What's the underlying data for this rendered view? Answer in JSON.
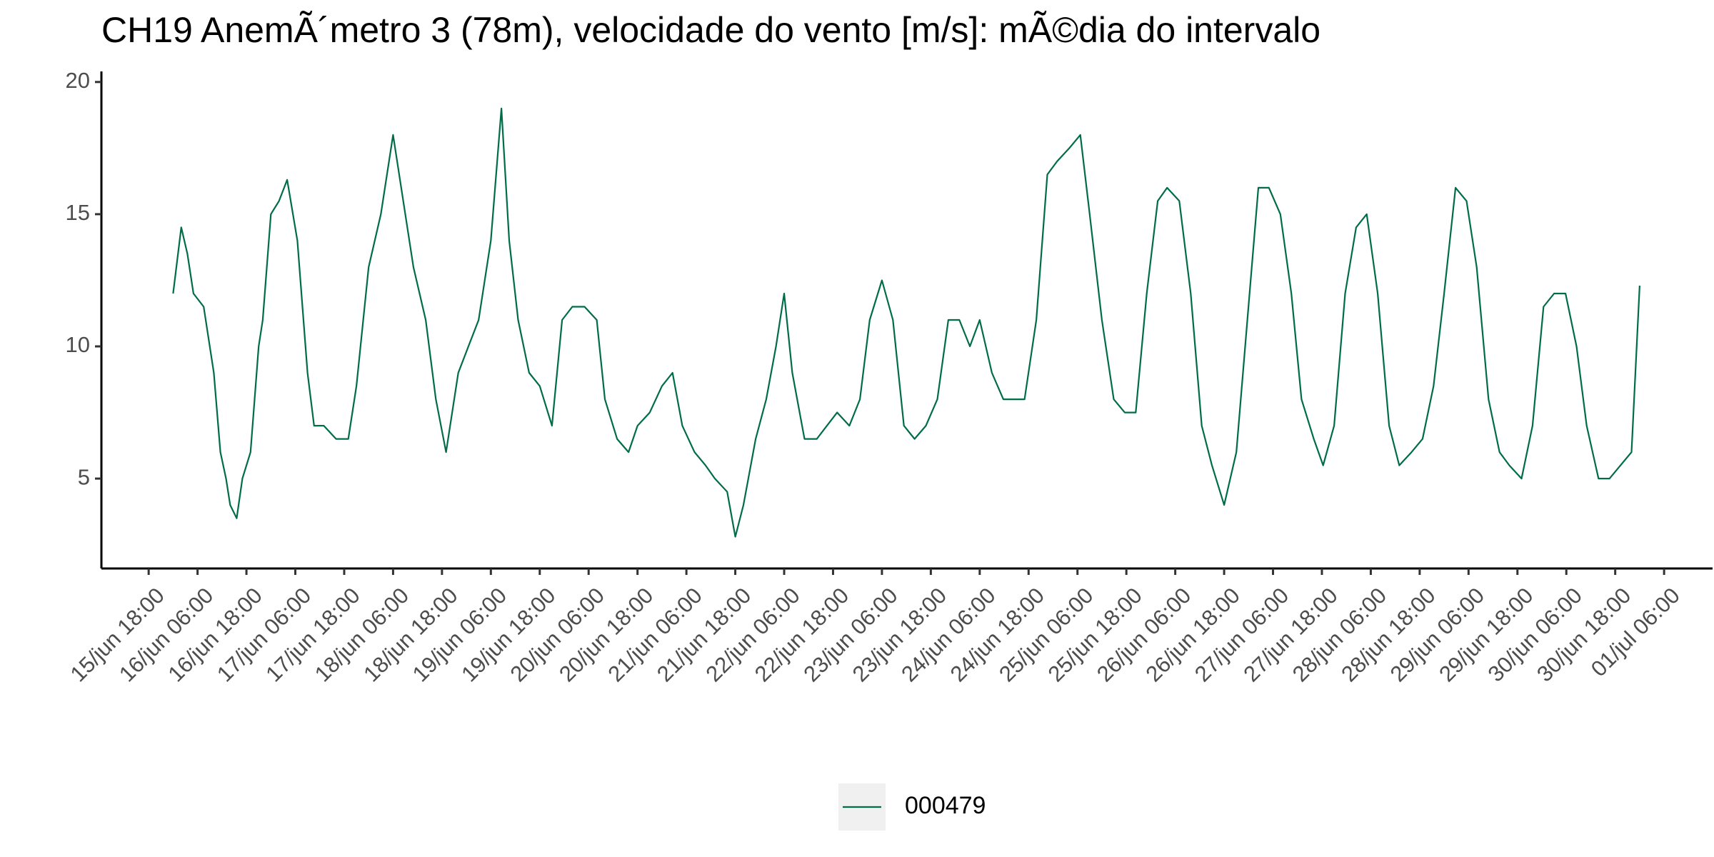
{
  "chart_data": {
    "type": "line",
    "title": "CH19 AnemÃ´metro 3 (78m), velocidade do vento [m/s]: mÃ©dia do intervalo",
    "x": [
      6,
      8,
      9.5,
      11,
      13.5,
      16,
      17.6,
      19,
      20,
      21.6,
      23,
      25,
      27,
      28,
      30,
      32,
      34,
      36.5,
      39,
      40.6,
      43,
      46,
      49,
      51,
      54,
      57,
      60,
      62,
      65,
      68,
      70.5,
      73,
      76,
      78.5,
      81,
      84,
      86.6,
      88.5,
      90.7,
      93.4,
      96,
      99,
      101.5,
      104,
      107,
      110,
      112,
      115,
      117.8,
      120,
      123,
      126,
      128.6,
      131,
      134,
      136.7,
      139,
      142,
      144,
      146,
      149,
      151.6,
      154,
      156,
      158,
      161,
      164,
      166.5,
      169,
      172,
      174.6,
      177,
      180,
      182.7,
      185.4,
      188,
      190.8,
      193.6,
      196.3,
      199,
      201.6,
      204,
      207,
      209.8,
      212.5,
      215,
      217.9,
      220.6,
      223,
      226,
      228.7,
      231,
      234,
      236.9,
      239.6,
      242.3,
      245,
      247.7,
      250,
      253,
      255.8,
      258.5,
      261,
      264,
      267,
      269.7,
      272.4,
      275,
      277.8,
      280.5,
      283,
      286,
      288.3,
      291,
      293.7,
      296.4,
      299,
      301.7,
      304.5,
      307,
      310,
      312.7,
      315.4,
      318,
      320.8,
      323.5,
      326,
      328.9,
      331.6,
      334,
      337,
      339.7,
      342.4,
      345,
      347.8,
      350.5,
      353,
      355.9,
      358.6,
      361.3,
      364,
      366
    ],
    "series": [
      {
        "name": "000479",
        "color": "#006d48",
        "values": [
          12,
          14.5,
          13.5,
          12,
          11.5,
          9,
          6,
          5,
          4,
          3.5,
          5,
          6,
          10,
          11,
          15,
          15.5,
          16.3,
          14,
          9,
          7,
          7,
          6.5,
          6.5,
          8.5,
          13,
          15,
          18,
          16,
          13,
          11,
          8,
          6,
          9,
          10,
          11,
          14,
          19,
          14,
          11,
          9,
          8.5,
          7,
          11,
          11.5,
          11.5,
          11,
          8,
          6.5,
          6,
          7,
          7.5,
          8.5,
          9,
          7,
          6,
          5.5,
          5,
          4.5,
          2.8,
          4,
          6.5,
          8,
          10,
          12,
          9,
          6.5,
          6.5,
          7,
          7.5,
          7,
          8,
          11,
          12.5,
          11,
          7,
          6.5,
          7,
          8,
          11,
          11,
          10,
          11,
          9,
          8,
          8,
          8,
          11,
          16.5,
          17,
          17.5,
          18,
          15,
          11,
          8,
          7.5,
          7.5,
          12,
          15.5,
          16,
          15.5,
          12,
          7,
          5.5,
          4,
          6,
          11,
          16,
          16,
          15,
          12,
          8,
          6.5,
          5.5,
          7,
          12,
          14.5,
          15,
          12,
          7,
          5.5,
          6,
          6.5,
          8.5,
          12,
          16,
          15.5,
          13,
          8,
          6,
          5.5,
          5,
          7,
          11.5,
          12,
          12,
          10,
          7,
          5,
          5,
          5.5,
          6,
          12.3
        ]
      }
    ],
    "xlim": [
      -11.6,
      383.9
    ],
    "xticks": [
      {
        "value": 0,
        "label": "15/jun 18:00"
      },
      {
        "value": 12,
        "label": "16/jun 06:00"
      },
      {
        "value": 24,
        "label": "16/jun 18:00"
      },
      {
        "value": 36,
        "label": "17/jun 06:00"
      },
      {
        "value": 48,
        "label": "17/jun 18:00"
      },
      {
        "value": 60,
        "label": "18/jun 06:00"
      },
      {
        "value": 72,
        "label": "18/jun 18:00"
      },
      {
        "value": 84,
        "label": "19/jun 06:00"
      },
      {
        "value": 96,
        "label": "19/jun 18:00"
      },
      {
        "value": 108,
        "label": "20/jun 06:00"
      },
      {
        "value": 120,
        "label": "20/jun 18:00"
      },
      {
        "value": 132,
        "label": "21/jun 06:00"
      },
      {
        "value": 144,
        "label": "21/jun 18:00"
      },
      {
        "value": 156,
        "label": "22/jun 06:00"
      },
      {
        "value": 168,
        "label": "22/jun 18:00"
      },
      {
        "value": 180,
        "label": "23/jun 06:00"
      },
      {
        "value": 192,
        "label": "23/jun 18:00"
      },
      {
        "value": 204,
        "label": "24/jun 06:00"
      },
      {
        "value": 216,
        "label": "24/jun 18:00"
      },
      {
        "value": 228,
        "label": "25/jun 06:00"
      },
      {
        "value": 240,
        "label": "25/jun 18:00"
      },
      {
        "value": 252,
        "label": "26/jun 06:00"
      },
      {
        "value": 264,
        "label": "26/jun 18:00"
      },
      {
        "value": 276,
        "label": "27/jun 06:00"
      },
      {
        "value": 288,
        "label": "27/jun 18:00"
      },
      {
        "value": 300,
        "label": "28/jun 06:00"
      },
      {
        "value": 312,
        "label": "28/jun 18:00"
      },
      {
        "value": 324,
        "label": "29/jun 06:00"
      },
      {
        "value": 336,
        "label": "29/jun 18:00"
      },
      {
        "value": 348,
        "label": "30/jun 06:00"
      },
      {
        "value": 360,
        "label": "30/jun 18:00"
      },
      {
        "value": 372,
        "label": "01/jul 06:00"
      }
    ],
    "ylim": [
      1.6,
      20.4
    ],
    "yticks": [
      5,
      10,
      15,
      20
    ],
    "grid": false,
    "legend": "bottom"
  }
}
